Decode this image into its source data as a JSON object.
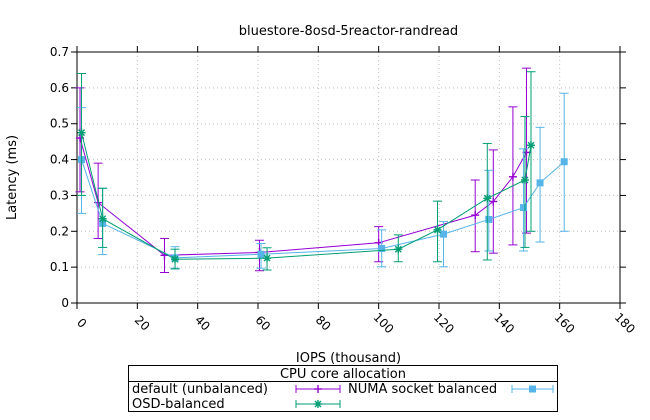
{
  "page": {
    "title": "bluestore-8osd-5reactor-randread"
  },
  "chart_data": {
    "type": "line",
    "title": "bluestore-8osd-5reactor-randread",
    "xlabel": "IOPS (thousand)",
    "ylabel": "Latency (ms)",
    "xlim": [
      0,
      180
    ],
    "ylim": [
      0,
      0.7
    ],
    "xticks": [
      0,
      20,
      40,
      60,
      80,
      100,
      120,
      140,
      160,
      180
    ],
    "yticks": [
      0,
      0.1,
      0.2,
      0.3,
      0.4,
      0.5,
      0.6,
      0.7
    ],
    "grid": true,
    "error_bars": "y",
    "legend": {
      "title": "CPU core allocation",
      "position": "below",
      "columns": 2
    },
    "point_format": [
      "x_iops_thousand",
      "y_latency_ms",
      "y_err_low",
      "y_err_high"
    ],
    "series": [
      {
        "name": "default (unbalanced)",
        "color": "#9400d3",
        "marker": "plus",
        "points": [
          [
            1,
            0.46,
            0.31,
            0.6
          ],
          [
            7,
            0.28,
            0.18,
            0.39
          ],
          [
            29,
            0.133,
            0.085,
            0.18
          ],
          [
            60.5,
            0.141,
            0.09,
            0.175
          ],
          [
            100,
            0.168,
            0.115,
            0.213
          ],
          [
            132,
            0.245,
            0.143,
            0.343
          ],
          [
            138,
            0.283,
            0.139,
            0.427
          ],
          [
            144.5,
            0.352,
            0.162,
            0.547
          ],
          [
            149,
            0.42,
            0.195,
            0.655
          ]
        ]
      },
      {
        "name": "NUMA socket balanced",
        "color": "#56b4e9",
        "marker": "square",
        "points": [
          [
            1.5,
            0.4,
            0.25,
            0.545
          ],
          [
            8.5,
            0.222,
            0.135,
            0.32
          ],
          [
            32.5,
            0.126,
            0.097,
            0.157
          ],
          [
            61,
            0.136,
            0.097,
            0.166
          ],
          [
            101,
            0.152,
            0.101,
            0.204
          ],
          [
            121.5,
            0.192,
            0.101,
            0.227
          ],
          [
            136.5,
            0.233,
            0.145,
            0.37
          ],
          [
            148,
            0.266,
            0.145,
            0.43
          ],
          [
            153.5,
            0.335,
            0.17,
            0.49
          ],
          [
            161.5,
            0.394,
            0.2,
            0.585
          ]
        ]
      },
      {
        "name": "OSD-balanced",
        "color": "#009e73",
        "marker": "asterisk",
        "points": [
          [
            1.5,
            0.475,
            0.3,
            0.64
          ],
          [
            8.5,
            0.235,
            0.155,
            0.32
          ],
          [
            32.5,
            0.122,
            0.095,
            0.15
          ],
          [
            63,
            0.125,
            0.092,
            0.154
          ],
          [
            106.5,
            0.15,
            0.115,
            0.19
          ],
          [
            119.5,
            0.204,
            0.115,
            0.284
          ],
          [
            136,
            0.292,
            0.12,
            0.445
          ],
          [
            148.5,
            0.343,
            0.155,
            0.52
          ],
          [
            150.5,
            0.44,
            0.2,
            0.645
          ]
        ]
      }
    ]
  }
}
